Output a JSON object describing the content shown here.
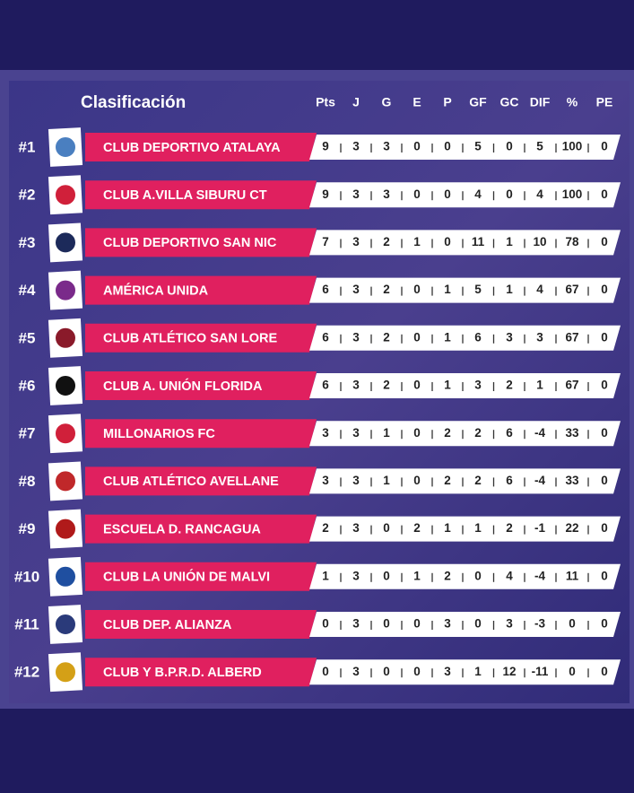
{
  "header": {
    "title": "Clasificación",
    "columns": [
      "Pts",
      "J",
      "G",
      "E",
      "P",
      "GF",
      "GC",
      "DIF",
      "%",
      "PE"
    ]
  },
  "table": {
    "rows": [
      {
        "rank": "#1",
        "team": "CLUB DEPORTIVO ATALAYA",
        "stats": [
          9,
          3,
          3,
          0,
          0,
          5,
          0,
          5,
          100,
          0
        ]
      },
      {
        "rank": "#2",
        "team": "CLUB A.VILLA SIBURU CT",
        "stats": [
          9,
          3,
          3,
          0,
          0,
          4,
          0,
          4,
          100,
          0
        ]
      },
      {
        "rank": "#3",
        "team": "CLUB DEPORTIVO SAN NIC",
        "stats": [
          7,
          3,
          2,
          1,
          0,
          11,
          1,
          10,
          78,
          0
        ]
      },
      {
        "rank": "#4",
        "team": "AMÉRICA UNIDA",
        "stats": [
          6,
          3,
          2,
          0,
          1,
          5,
          1,
          4,
          67,
          0
        ]
      },
      {
        "rank": "#5",
        "team": "CLUB ATLÉTICO SAN LORE",
        "stats": [
          6,
          3,
          2,
          0,
          1,
          6,
          3,
          3,
          67,
          0
        ]
      },
      {
        "rank": "#6",
        "team": "CLUB A. UNIÓN FLORIDA",
        "stats": [
          6,
          3,
          2,
          0,
          1,
          3,
          2,
          1,
          67,
          0
        ]
      },
      {
        "rank": "#7",
        "team": "MILLONARIOS FC",
        "stats": [
          3,
          3,
          1,
          0,
          2,
          2,
          6,
          -4,
          33,
          0
        ]
      },
      {
        "rank": "#8",
        "team": "CLUB ATLÉTICO AVELLANE",
        "stats": [
          3,
          3,
          1,
          0,
          2,
          2,
          6,
          -4,
          33,
          0
        ]
      },
      {
        "rank": "#9",
        "team": "ESCUELA D. RANCAGUA",
        "stats": [
          2,
          3,
          0,
          2,
          1,
          1,
          2,
          -1,
          22,
          0
        ]
      },
      {
        "rank": "#10",
        "team": "CLUB LA UNIÓN DE MALVI",
        "stats": [
          1,
          3,
          0,
          1,
          2,
          0,
          4,
          -4,
          11,
          0
        ]
      },
      {
        "rank": "#11",
        "team": "CLUB DEP. ALIANZA",
        "stats": [
          0,
          3,
          0,
          0,
          3,
          0,
          3,
          -3,
          0,
          0
        ]
      },
      {
        "rank": "#12",
        "team": "CLUB Y B.P.R.D. ALBERD",
        "stats": [
          0,
          3,
          0,
          0,
          3,
          1,
          12,
          -11,
          0,
          0
        ]
      }
    ]
  }
}
